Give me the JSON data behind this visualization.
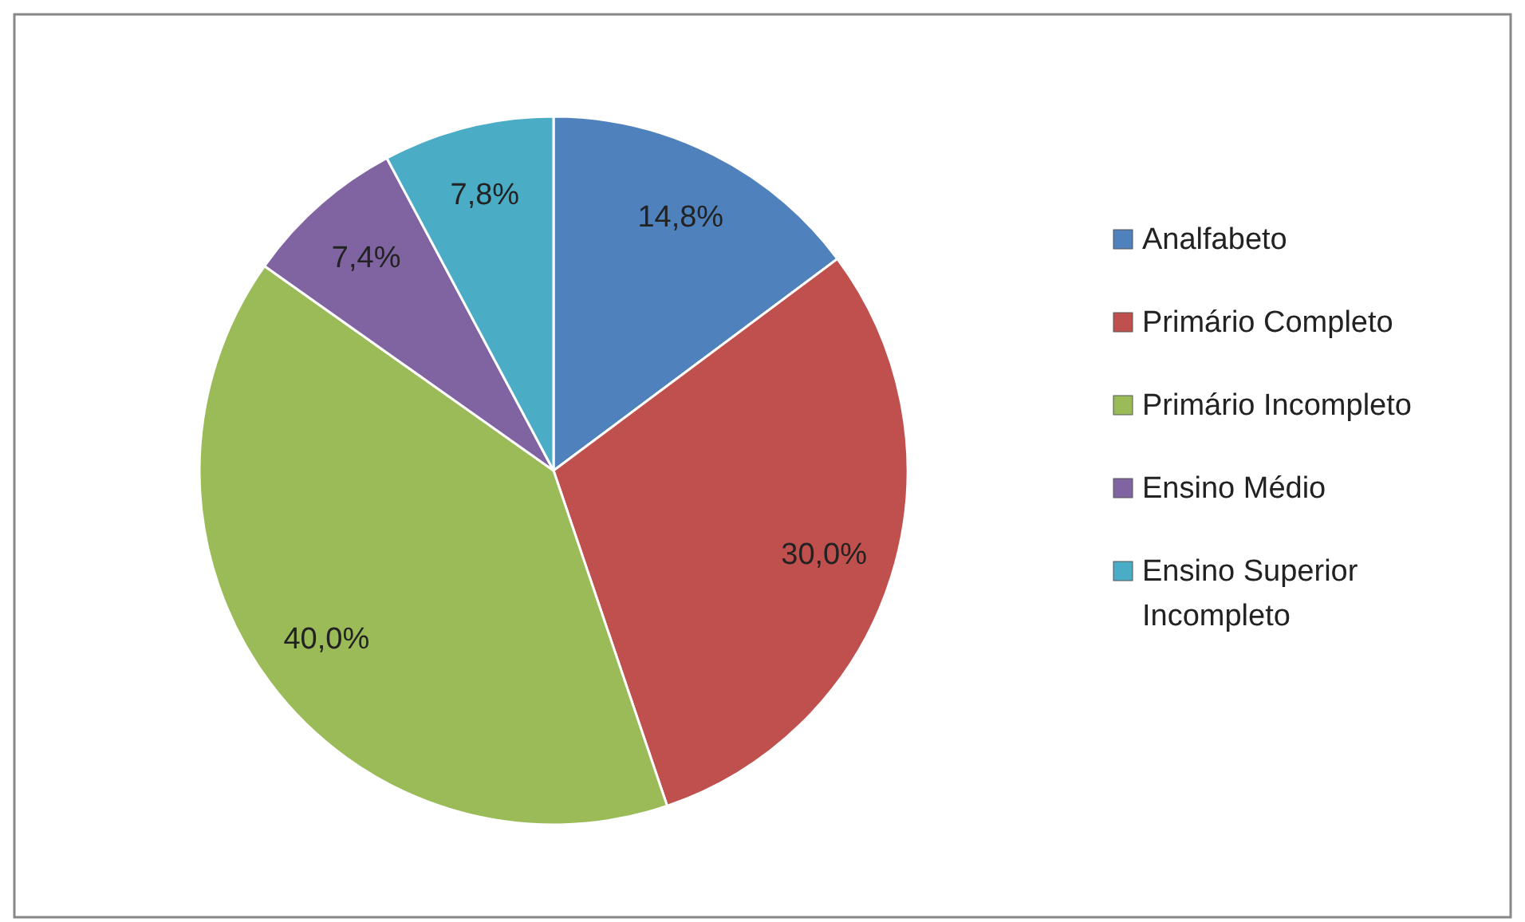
{
  "chart_data": {
    "type": "pie",
    "categories": [
      "Analfabeto",
      "Primário Completo",
      "Primário Incompleto",
      "Ensino Médio",
      "Ensino Superior Incompleto"
    ],
    "values": [
      14.8,
      30.0,
      40.0,
      7.4,
      7.8
    ],
    "value_labels": [
      "14,8%",
      "30,0%",
      "40,0%",
      "7,4%",
      "7,8%"
    ],
    "colors": [
      "#4f81bd",
      "#c0504d",
      "#9bbb59",
      "#8064a2",
      "#4bacc6"
    ],
    "legend": "right"
  }
}
